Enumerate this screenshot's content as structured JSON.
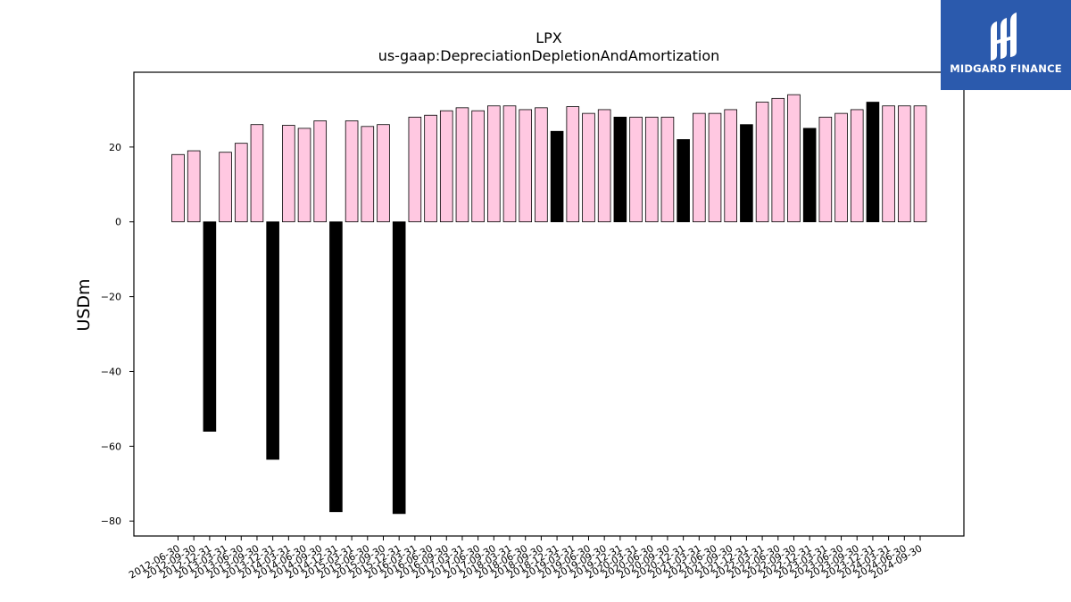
{
  "logo": {
    "text": "MIDGARD FINANCE",
    "bg_color": "#2b5aad"
  },
  "chart_data": {
    "type": "bar",
    "title": "LPX",
    "subtitle": "us-gaap:DepreciationDepletionAndAmortization",
    "xlabel": "",
    "ylabel": "USDm",
    "ylim": [
      -84,
      40
    ],
    "yticks": [
      -80,
      -60,
      -40,
      -20,
      0,
      20
    ],
    "grid": false,
    "colors": {
      "regular": "#ffc8e1",
      "annual": "#000000",
      "edge": "#000000"
    },
    "categories": [
      "2012-06-30",
      "2012-09-30",
      "2012-12-31",
      "2013-03-31",
      "2013-06-30",
      "2013-09-30",
      "2013-12-31",
      "2014-03-31",
      "2014-06-30",
      "2014-09-30",
      "2014-12-31",
      "2015-03-31",
      "2015-06-30",
      "2015-09-30",
      "2015-12-31",
      "2016-03-31",
      "2016-06-30",
      "2016-09-30",
      "2017-03-31",
      "2017-06-30",
      "2017-09-30",
      "2018-03-31",
      "2018-06-30",
      "2018-09-30",
      "2018-12-31",
      "2019-03-31",
      "2019-06-30",
      "2019-09-30",
      "2019-12-31",
      "2020-03-31",
      "2020-06-30",
      "2020-09-30",
      "2020-12-31",
      "2021-03-31",
      "2021-06-30",
      "2021-09-30",
      "2021-12-31",
      "2022-03-31",
      "2022-06-30",
      "2022-09-30",
      "2022-12-31",
      "2023-03-31",
      "2023-06-30",
      "2023-09-30",
      "2023-12-31",
      "2024-03-31",
      "2024-06-30",
      "2024-09-30"
    ],
    "values": [
      18,
      19,
      -56,
      18.6,
      21,
      26,
      -63.5,
      25.8,
      25,
      27,
      -77.5,
      27,
      25.5,
      26,
      -78,
      28,
      28.5,
      29.7,
      30.5,
      29.7,
      31,
      31,
      30,
      30.5,
      24.2,
      30.8,
      29,
      30,
      28,
      28,
      28,
      28,
      22,
      29,
      29,
      30,
      26,
      32,
      33,
      34,
      25,
      28,
      29,
      30,
      32,
      31,
      31,
      31
    ],
    "annual": [
      false,
      false,
      true,
      false,
      false,
      false,
      true,
      false,
      false,
      false,
      true,
      false,
      false,
      false,
      true,
      false,
      false,
      false,
      false,
      false,
      false,
      false,
      false,
      false,
      true,
      false,
      false,
      false,
      true,
      false,
      false,
      false,
      true,
      false,
      false,
      false,
      true,
      false,
      false,
      false,
      true,
      false,
      false,
      false,
      true,
      false,
      false,
      false
    ]
  }
}
